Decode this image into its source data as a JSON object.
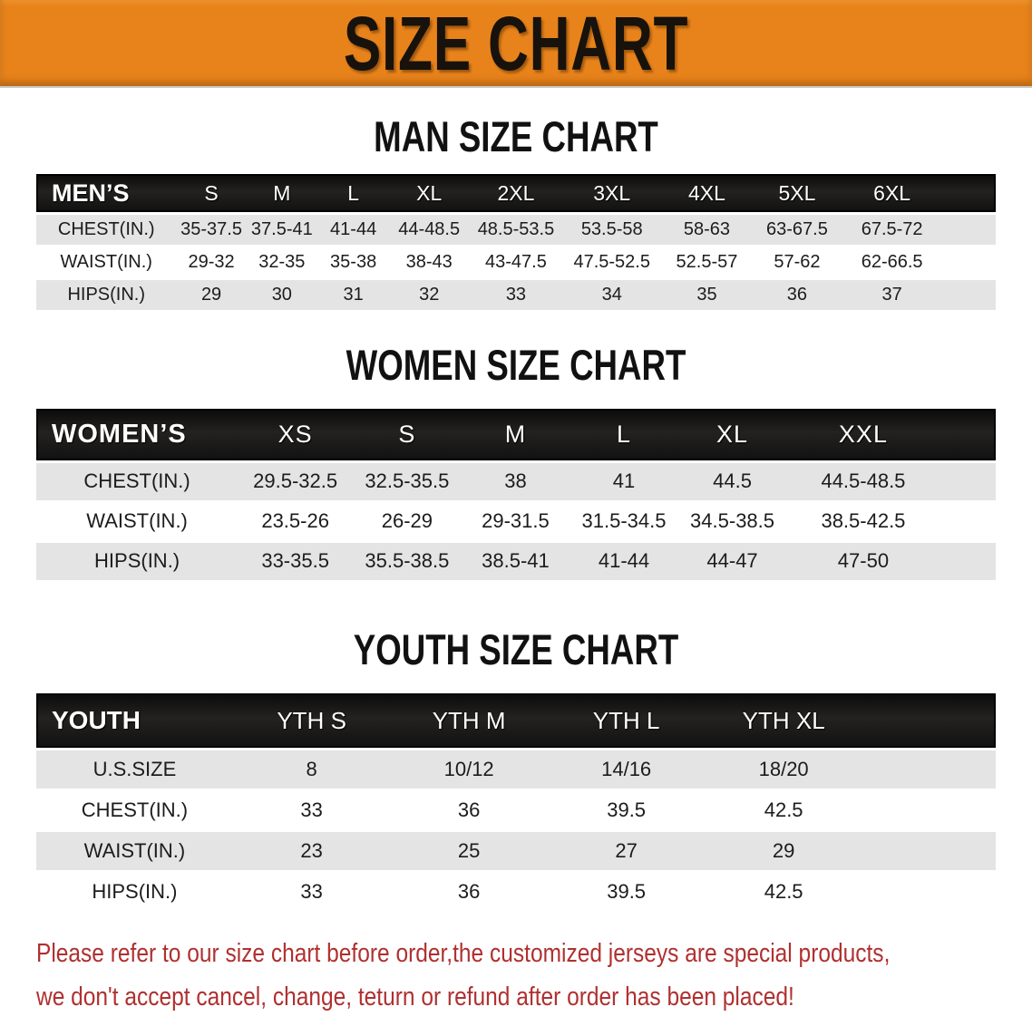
{
  "banner": {
    "title": "SIZE CHART"
  },
  "colors": {
    "banner_bg": "#E8831B",
    "heading_text": "#111111",
    "table_header_bg": "#161616",
    "table_header_text": "#FFFFFF",
    "row_alt_bg": "#E4E4E4",
    "disclaimer_text": "#B03030"
  },
  "sections": [
    {
      "heading": "MAN SIZE CHART",
      "header_label": "MEN’S",
      "columns": [
        "S",
        "M",
        "L",
        "XL",
        "2XL",
        "3XL",
        "4XL",
        "5XL",
        "6XL"
      ],
      "rows": [
        {
          "label": "CHEST(IN.)",
          "values": [
            "35-37.5",
            "37.5-41",
            "41-44",
            "44-48.5",
            "48.5-53.5",
            "53.5-58",
            "58-63",
            "63-67.5",
            "67.5-72"
          ]
        },
        {
          "label": "WAIST(IN.)",
          "values": [
            "29-32",
            "32-35",
            "35-38",
            "38-43",
            "43-47.5",
            "47.5-52.5",
            "52.5-57",
            "57-62",
            "62-66.5"
          ]
        },
        {
          "label": "HIPS(IN.)",
          "values": [
            "29",
            "30",
            "31",
            "32",
            "33",
            "34",
            "35",
            "36",
            "37"
          ]
        }
      ]
    },
    {
      "heading": "WOMEN SIZE CHART",
      "header_label": "WOMEN’S",
      "columns": [
        "XS",
        "S",
        "M",
        "L",
        "XL",
        "XXL"
      ],
      "rows": [
        {
          "label": "CHEST(IN.)",
          "values": [
            "29.5-32.5",
            "32.5-35.5",
            "38",
            "41",
            "44.5",
            "44.5-48.5"
          ]
        },
        {
          "label": "WAIST(IN.)",
          "values": [
            "23.5-26",
            "26-29",
            "29-31.5",
            "31.5-34.5",
            "34.5-38.5",
            "38.5-42.5"
          ]
        },
        {
          "label": "HIPS(IN.)",
          "values": [
            "33-35.5",
            "35.5-38.5",
            "38.5-41",
            "41-44",
            "44-47",
            "47-50"
          ]
        }
      ]
    },
    {
      "heading": "YOUTH SIZE CHART",
      "header_label": "YOUTH",
      "columns": [
        "YTH S",
        "YTH M",
        "YTH L",
        "YTH XL"
      ],
      "rows": [
        {
          "label": "U.S.SIZE",
          "values": [
            "8",
            "10/12",
            "14/16",
            "18/20"
          ]
        },
        {
          "label": "CHEST(IN.)",
          "values": [
            "33",
            "36",
            "39.5",
            "42.5"
          ]
        },
        {
          "label": "WAIST(IN.)",
          "values": [
            "23",
            "25",
            "27",
            "29"
          ]
        },
        {
          "label": "HIPS(IN.)",
          "values": [
            "33",
            "36",
            "39.5",
            "42.5"
          ]
        }
      ]
    }
  ],
  "footer": {
    "line1": "Please refer to our size chart before order,the customized jerseys are special products,",
    "line2": "we don't accept cancel, change, teturn or refund after order has been placed!"
  }
}
